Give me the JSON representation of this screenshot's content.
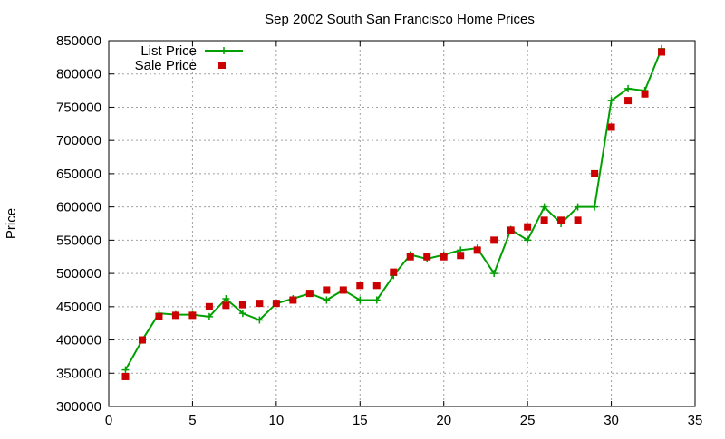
{
  "chart_data": {
    "type": "line",
    "title": "Sep 2002 South San Francisco Home Prices",
    "xlabel": "",
    "ylabel": "Price",
    "xlim": [
      0,
      35
    ],
    "ylim": [
      300000,
      850000
    ],
    "xticks": [
      0,
      5,
      10,
      15,
      20,
      25,
      30,
      35
    ],
    "yticks": [
      300000,
      350000,
      400000,
      450000,
      500000,
      550000,
      600000,
      650000,
      700000,
      750000,
      800000,
      850000
    ],
    "grid": true,
    "legend_position": "top-left",
    "series": [
      {
        "name": "List Price",
        "style": "line-with-plus-markers",
        "color": "#00a000",
        "x": [
          1,
          2,
          3,
          4,
          5,
          6,
          7,
          8,
          9,
          10,
          11,
          12,
          13,
          14,
          15,
          16,
          17,
          18,
          19,
          20,
          21,
          22,
          23,
          24,
          25,
          26,
          27,
          28,
          29,
          30,
          31,
          32,
          33
        ],
        "y": [
          355000,
          400000,
          440000,
          438000,
          438000,
          435000,
          462000,
          440000,
          430000,
          455000,
          462000,
          470000,
          460000,
          475000,
          460000,
          460000,
          497000,
          528000,
          522000,
          528000,
          535000,
          538000,
          500000,
          566000,
          550000,
          600000,
          575000,
          600000,
          600000,
          760000,
          778000,
          775000,
          838000
        ]
      },
      {
        "name": "Sale Price",
        "style": "square-markers",
        "color": "#cc0000",
        "x": [
          1,
          2,
          3,
          4,
          5,
          6,
          7,
          8,
          9,
          10,
          11,
          12,
          13,
          14,
          15,
          16,
          17,
          18,
          19,
          20,
          21,
          22,
          23,
          24,
          25,
          26,
          27,
          28,
          29,
          30,
          31,
          32,
          33
        ],
        "y": [
          345000,
          400000,
          435000,
          437000,
          437000,
          450000,
          452000,
          453000,
          455000,
          455000,
          460000,
          470000,
          475000,
          475000,
          482000,
          482000,
          502000,
          525000,
          525000,
          525000,
          527000,
          535000,
          550000,
          565000,
          570000,
          580000,
          580000,
          580000,
          650000,
          720000,
          760000,
          770000,
          833000
        ]
      }
    ]
  }
}
